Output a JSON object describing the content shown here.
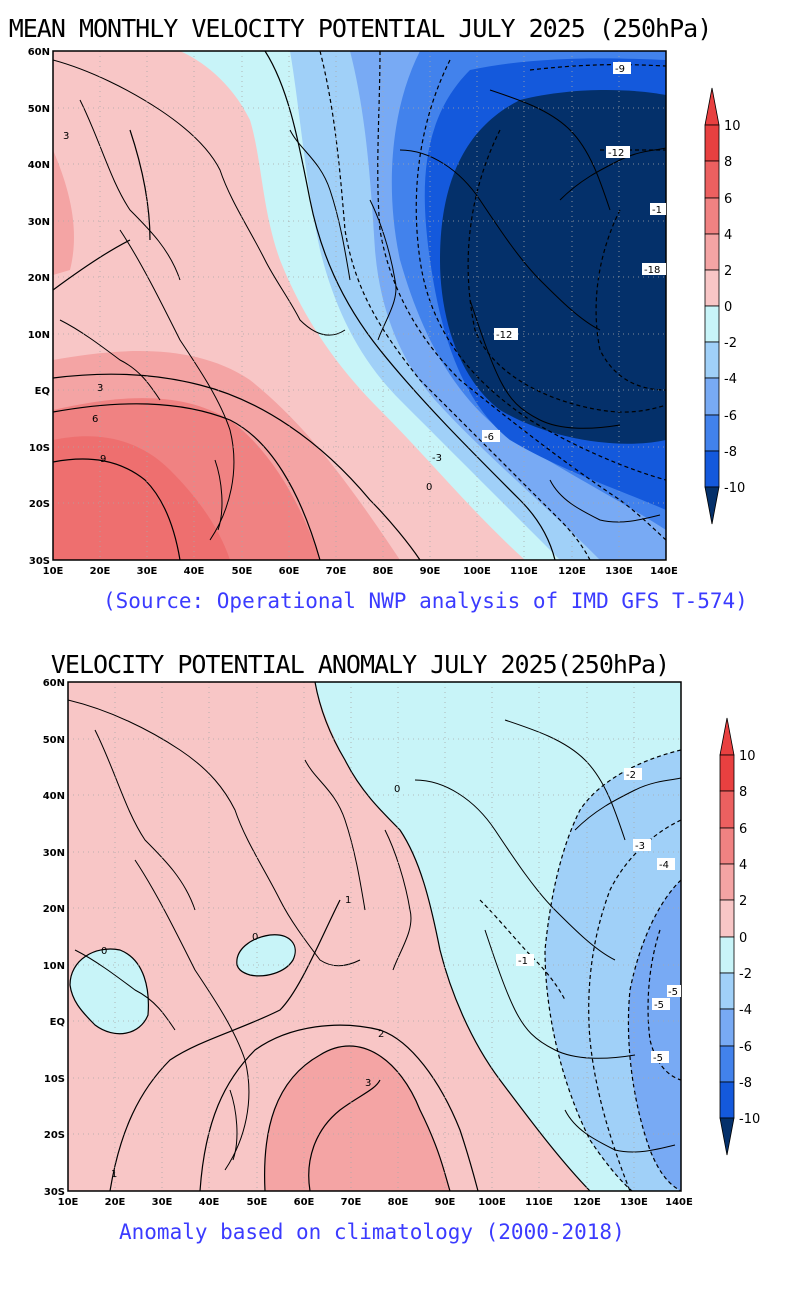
{
  "panel1": {
    "title": "MEAN MONTHLY VELOCITY POTENTIAL JULY 2025 (250hPa)",
    "caption": "(Source: Operational NWP analysis of IMD GFS T-574)",
    "contour_labels": [
      "-9",
      "3",
      "-12",
      "-1",
      "-18",
      "-12",
      "3",
      "6",
      "9",
      "-6",
      "-3",
      "0"
    ]
  },
  "panel2": {
    "title": "VELOCITY POTENTIAL ANOMALY JULY 2025(250hPa)",
    "caption": "Anomaly based on climatology (2000-2018)",
    "contour_labels": [
      "0",
      "-2",
      "-3",
      "-4",
      "1",
      "0",
      "0",
      "-1",
      "-5",
      "-5",
      "-5",
      "2",
      "3",
      "1"
    ]
  },
  "axes": {
    "lat_labels": [
      "60N",
      "50N",
      "40N",
      "30N",
      "20N",
      "10N",
      "EQ",
      "10S",
      "20S",
      "30S"
    ],
    "lon_labels": [
      "10E",
      "20E",
      "30E",
      "40E",
      "50E",
      "60E",
      "70E",
      "80E",
      "90E",
      "100E",
      "110E",
      "120E",
      "130E",
      "140E"
    ]
  },
  "colorbar": {
    "labels": [
      "10",
      "8",
      "6",
      "4",
      "2",
      "0",
      "-2",
      "-4",
      "-6",
      "-8",
      "-10"
    ],
    "colors": [
      "#e84040",
      "#ec6060",
      "#f08282",
      "#f4a4a4",
      "#f8c6c6",
      "#c8f4f8",
      "#a0d0f8",
      "#78aaf4",
      "#4282ec",
      "#1459dc",
      "#04306a"
    ]
  },
  "colors": {
    "fill_0_2": "#f8c6c6",
    "fill_2_4": "#f4a4a4",
    "fill_4_6": "#f08282",
    "fill_6_8": "#ec6060",
    "fill_m2_0": "#c8f4f8",
    "fill_m4_m2": "#a0d0f8",
    "fill_m6_m4": "#78aaf4",
    "fill_m8_m6": "#4282ec",
    "fill_m10_m8": "#1459dc",
    "fill_lt_m10": "#04306a",
    "caption": "#3b3bff"
  }
}
